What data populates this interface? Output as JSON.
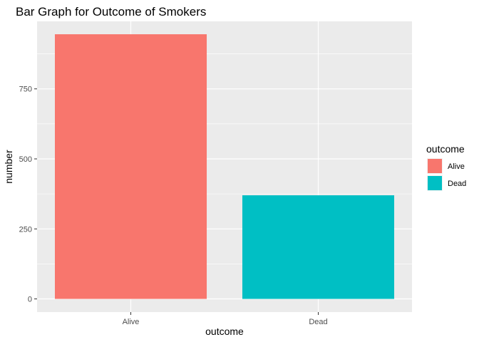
{
  "chart_data": {
    "type": "bar",
    "title": "Bar Graph for Outcome of Smokers",
    "xlabel": "outcome",
    "ylabel": "number",
    "categories": [
      "Alive",
      "Dead"
    ],
    "values": [
      945,
      370
    ],
    "colors": [
      "#F8766D",
      "#00BFC4"
    ],
    "ylim": [
      -47,
      991
    ],
    "yticks": [
      0,
      250,
      500,
      750
    ],
    "ytick_labels": [
      "0",
      "250",
      "500",
      "750"
    ],
    "grid": true,
    "legend": {
      "title": "outcome",
      "position": "right",
      "entries": [
        "Alive",
        "Dead"
      ]
    }
  }
}
